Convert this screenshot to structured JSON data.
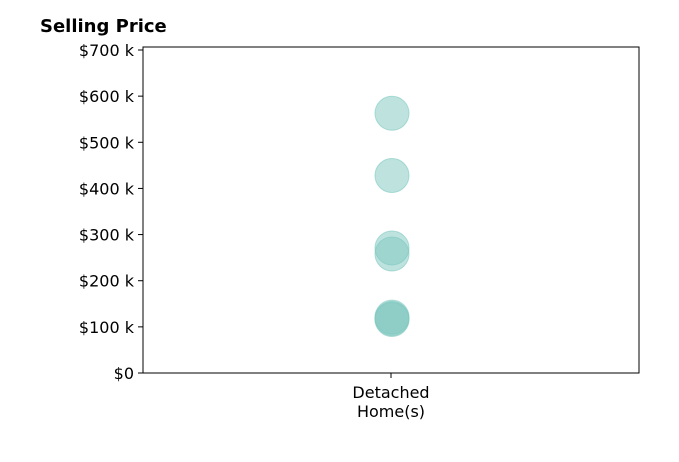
{
  "chart_data": {
    "type": "scatter",
    "title": "Selling Price",
    "xlabel": "",
    "ylabel": "",
    "categories": [
      "Detached",
      "Home(s)"
    ],
    "category_label_lines": [
      "Detached",
      "Home(s)"
    ],
    "series": [
      {
        "values": [
          563000,
          428000,
          271000,
          258000,
          121000,
          118000,
          116000
        ]
      }
    ],
    "ylim": [
      0,
      700000
    ],
    "yticks": [
      0,
      100000,
      200000,
      300000,
      400000,
      500000,
      600000,
      700000
    ],
    "ytick_labels": [
      "$0",
      "$100 k",
      "$200 k",
      "$300 k",
      "$400 k",
      "$500 k",
      "$600 k",
      "$700 k"
    ],
    "grid": false,
    "marker_color": "#7ec8c0",
    "marker_opacity": 0.5
  }
}
